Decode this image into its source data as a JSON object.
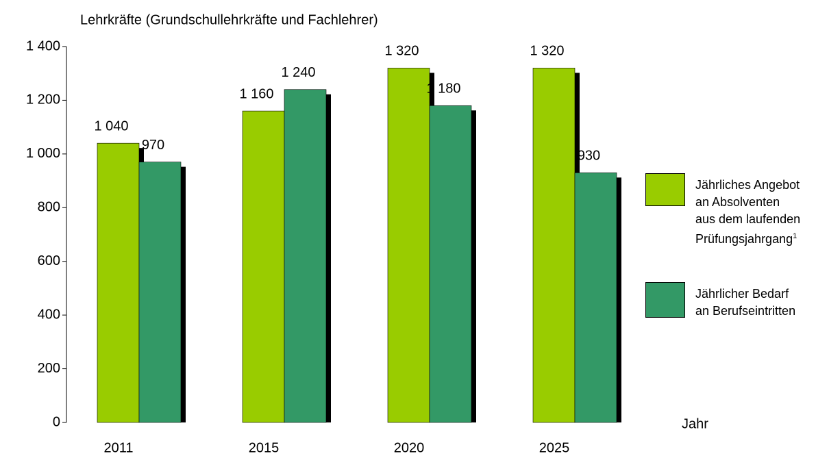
{
  "chart_data": {
    "type": "bar",
    "title": "Lehrkräfte (Grundschullehrkräfte und Fachlehrer)",
    "x_label": "Jahr",
    "categories": [
      "2011",
      "2015",
      "2020",
      "2025"
    ],
    "series": [
      {
        "name": "Jährliches Angebot\nan Absolventen\naus dem laufenden\nPrüfungsjahrgang",
        "footnote": "1",
        "color": "#99cc00",
        "values": [
          1040,
          1160,
          1320,
          1320
        ],
        "value_labels": [
          "1 040",
          "1 160",
          "1 320",
          "1 320"
        ]
      },
      {
        "name": "Jährlicher Bedarf\nan Berufseintritten",
        "color": "#339966",
        "values": [
          970,
          1240,
          1180,
          930
        ],
        "value_labels": [
          "970",
          "1 240",
          "1 180",
          "930"
        ]
      }
    ],
    "ylim": [
      0,
      1400
    ],
    "yticks": [
      0,
      200,
      400,
      600,
      800,
      {
        "value": 1000,
        "label": "1 000"
      },
      {
        "value": 1200,
        "label": "1 200"
      },
      {
        "value": 1400,
        "label": "1 400"
      }
    ],
    "shadow": true
  }
}
